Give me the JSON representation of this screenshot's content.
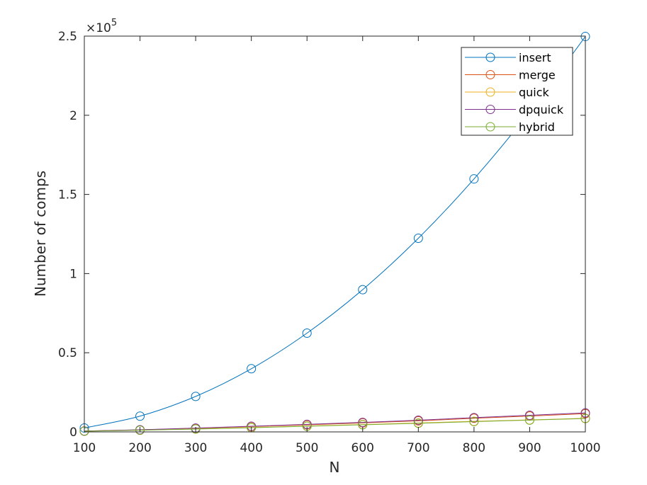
{
  "chart_data": {
    "type": "line",
    "title": "",
    "xlabel": "N",
    "ylabel": "Number of comps",
    "xlim": [
      100,
      1000
    ],
    "ylim": [
      0,
      250000
    ],
    "x": [
      100,
      200,
      300,
      400,
      500,
      600,
      700,
      800,
      900,
      1000
    ],
    "x_tick_labels": [
      "100",
      "200",
      "300",
      "400",
      "500",
      "600",
      "700",
      "800",
      "900",
      "1000"
    ],
    "y_ticks": [
      0,
      50000,
      100000,
      150000,
      200000,
      250000
    ],
    "y_tick_labels": [
      "0",
      "0.5",
      "1",
      "1.5",
      "2",
      "2.5"
    ],
    "y_exponent_label": {
      "base": "×10",
      "exponent": "5"
    },
    "grid": false,
    "legend_position": "top-right",
    "marker": "circle",
    "series": [
      {
        "name": "insert",
        "color": "#0072BD",
        "values": [
          2475,
          9950,
          22425,
          39900,
          62375,
          89850,
          122325,
          159800,
          202275,
          249750
        ]
      },
      {
        "name": "merge",
        "color": "#D95319",
        "values": [
          540,
          1280,
          2290,
          3400,
          4500,
          5700,
          7000,
          8600,
          10000,
          11500
        ]
      },
      {
        "name": "quick",
        "color": "#EDB120",
        "values": [
          480,
          1150,
          1950,
          2800,
          3700,
          4650,
          5650,
          6700,
          7600,
          8600
        ]
      },
      {
        "name": "dpquick",
        "color": "#7E2F8E",
        "values": [
          560,
          1350,
          2400,
          3550,
          4750,
          6000,
          7400,
          9000,
          10500,
          12000
        ]
      },
      {
        "name": "hybrid",
        "color": "#77AC30",
        "values": [
          430,
          1050,
          1800,
          2650,
          3550,
          4500,
          5450,
          6500,
          7450,
          8450
        ]
      }
    ]
  }
}
